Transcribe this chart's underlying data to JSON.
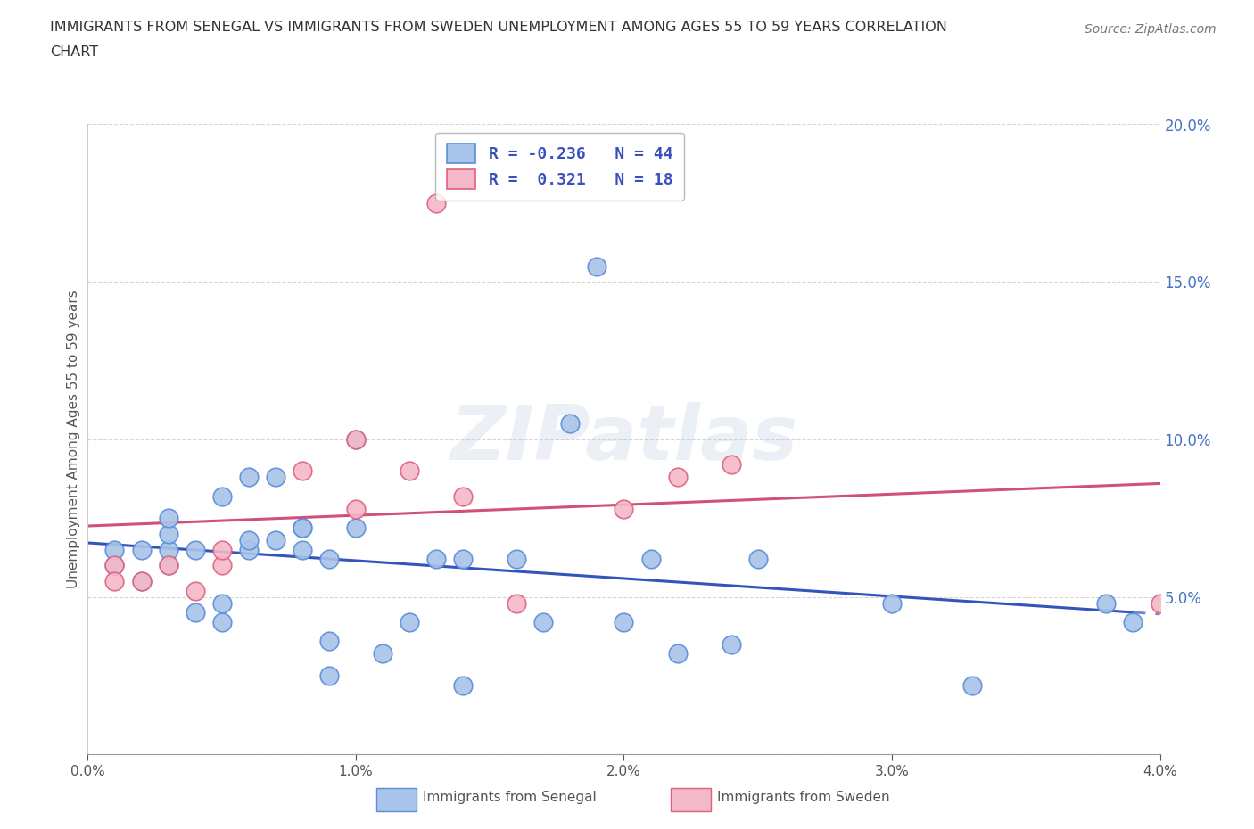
{
  "title_line1": "IMMIGRANTS FROM SENEGAL VS IMMIGRANTS FROM SWEDEN UNEMPLOYMENT AMONG AGES 55 TO 59 YEARS CORRELATION",
  "title_line2": "CHART",
  "source": "Source: ZipAtlas.com",
  "ylabel": "Unemployment Among Ages 55 to 59 years",
  "watermark": "ZIPatlas",
  "xlim": [
    0.0,
    0.04
  ],
  "ylim": [
    0.0,
    0.2
  ],
  "xticks": [
    0.0,
    0.01,
    0.02,
    0.03,
    0.04
  ],
  "yticks": [
    0.0,
    0.05,
    0.1,
    0.15,
    0.2
  ],
  "senegal_fill": "#a8c4e8",
  "senegal_edge": "#5b8dd9",
  "sweden_fill": "#f4b8c8",
  "sweden_edge": "#e06080",
  "senegal_line_color": "#3355bb",
  "sweden_line_color": "#d0507a",
  "senegal_R": -0.236,
  "senegal_N": 44,
  "sweden_R": 0.321,
  "sweden_N": 18,
  "legend_text_color": "#3a50c0",
  "right_tick_color": "#4472c4",
  "senegal_x": [
    0.001,
    0.001,
    0.002,
    0.002,
    0.003,
    0.003,
    0.003,
    0.003,
    0.004,
    0.004,
    0.005,
    0.005,
    0.005,
    0.006,
    0.006,
    0.006,
    0.007,
    0.007,
    0.008,
    0.008,
    0.008,
    0.009,
    0.009,
    0.009,
    0.01,
    0.01,
    0.011,
    0.012,
    0.013,
    0.014,
    0.014,
    0.016,
    0.017,
    0.018,
    0.019,
    0.02,
    0.021,
    0.022,
    0.024,
    0.025,
    0.03,
    0.033,
    0.038,
    0.039
  ],
  "senegal_y": [
    0.06,
    0.065,
    0.065,
    0.055,
    0.06,
    0.065,
    0.07,
    0.075,
    0.045,
    0.065,
    0.042,
    0.048,
    0.082,
    0.065,
    0.068,
    0.088,
    0.068,
    0.088,
    0.065,
    0.072,
    0.072,
    0.062,
    0.025,
    0.036,
    0.072,
    0.1,
    0.032,
    0.042,
    0.062,
    0.022,
    0.062,
    0.062,
    0.042,
    0.105,
    0.155,
    0.042,
    0.062,
    0.032,
    0.035,
    0.062,
    0.048,
    0.022,
    0.048,
    0.042
  ],
  "sweden_x": [
    0.001,
    0.001,
    0.002,
    0.003,
    0.004,
    0.005,
    0.005,
    0.008,
    0.01,
    0.01,
    0.012,
    0.013,
    0.014,
    0.016,
    0.02,
    0.022,
    0.024,
    0.04
  ],
  "sweden_y": [
    0.06,
    0.055,
    0.055,
    0.06,
    0.052,
    0.06,
    0.065,
    0.09,
    0.1,
    0.078,
    0.09,
    0.175,
    0.082,
    0.048,
    0.078,
    0.088,
    0.092,
    0.048
  ],
  "background_color": "#ffffff",
  "grid_color": "#cccccc",
  "title_color": "#333333",
  "axis_color": "#555555",
  "bottom_legend_blue_label": "Immigrants from Senegal",
  "bottom_legend_pink_label": "Immigrants from Sweden"
}
